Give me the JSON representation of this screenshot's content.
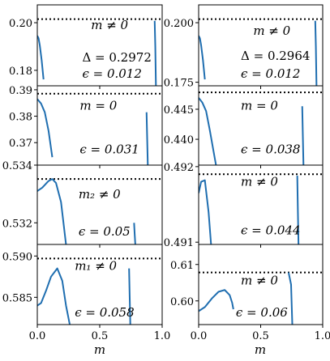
{
  "chart_data": [
    {
      "type": "line",
      "xlim": [
        0,
        1
      ],
      "ylim": [
        0.1735,
        0.2075
      ],
      "yticks": [
        {
          "v": 0.2,
          "label": "0.20"
        },
        {
          "v": 0.18,
          "label": "0.18"
        }
      ],
      "hline": 0.2015,
      "annotations": [
        "m ≠ 0",
        "Δ = 0.2972",
        "ϵ = 0.012"
      ],
      "series": [
        {
          "points": [
            [
              0,
              0.1945
            ],
            [
              0.01,
              0.1935
            ],
            [
              0.02,
              0.1905
            ],
            [
              0.035,
              0.1842
            ],
            [
              0.05,
              0.1762
            ]
          ]
        },
        {
          "points": [
            [
              0.94,
              0.2008
            ],
            [
              0.945,
              0.19
            ],
            [
              0.95,
              0.1735
            ]
          ]
        }
      ]
    },
    {
      "type": "line",
      "xlim": [
        0,
        1
      ],
      "ylim": [
        0.1735,
        0.2075
      ],
      "yticks": [
        {
          "v": 0.2,
          "label": "0.200"
        },
        {
          "v": 0.175,
          "label": "0.175"
        }
      ],
      "hline": 0.2015,
      "annotations": [
        "m ≠ 0",
        "Δ = 0.2964",
        "ϵ = 0.012"
      ],
      "series": [
        {
          "points": [
            [
              0,
              0.1945
            ],
            [
              0.01,
              0.1935
            ],
            [
              0.02,
              0.1905
            ],
            [
              0.035,
              0.1842
            ],
            [
              0.05,
              0.1762
            ]
          ]
        },
        {
          "points": [
            [
              0.94,
              0.2008
            ],
            [
              0.945,
              0.19
            ],
            [
              0.95,
              0.1735
            ]
          ]
        }
      ]
    },
    {
      "type": "line",
      "xlim": [
        0,
        1
      ],
      "ylim": [
        0.3615,
        0.3915
      ],
      "yticks": [
        {
          "v": 0.39,
          "label": "0.39"
        },
        {
          "v": 0.38,
          "label": "0.38"
        },
        {
          "v": 0.37,
          "label": "0.37"
        }
      ],
      "hline": 0.3885,
      "annotations": [
        "m = 0",
        "ϵ = 0.031"
      ],
      "series": [
        {
          "points": [
            [
              0,
              0.3865
            ],
            [
              0.03,
              0.3848
            ],
            [
              0.06,
              0.3815
            ],
            [
              0.09,
              0.3745
            ],
            [
              0.12,
              0.3645
            ]
          ]
        },
        {
          "points": [
            [
              0.875,
              0.3815
            ],
            [
              0.88,
              0.3715
            ],
            [
              0.885,
              0.3615
            ]
          ]
        }
      ]
    },
    {
      "type": "line",
      "xlim": [
        0,
        1
      ],
      "ylim": [
        0.4357,
        0.4489
      ],
      "yticks": [
        {
          "v": 0.445,
          "label": "0.445"
        },
        {
          "v": 0.44,
          "label": "0.440"
        }
      ],
      "hline": 0.4478,
      "annotations": [
        "m = 0",
        "ϵ = 0.038"
      ],
      "series": [
        {
          "points": [
            [
              0,
              0.4469
            ],
            [
              0.03,
              0.4461
            ],
            [
              0.06,
              0.4447
            ],
            [
              0.09,
              0.4415
            ],
            [
              0.12,
              0.438
            ],
            [
              0.14,
              0.4357
            ]
          ]
        },
        {
          "points": [
            [
              0.835,
              0.4455
            ],
            [
              0.84,
              0.4405
            ],
            [
              0.845,
              0.4357
            ]
          ]
        }
      ]
    },
    {
      "type": "line",
      "xlim": [
        0,
        1
      ],
      "ylim": [
        0.53125,
        0.534
      ],
      "yticks": [
        {
          "v": 0.534,
          "label": "0.534"
        },
        {
          "v": 0.532,
          "label": "0.532"
        }
      ],
      "hline": 0.53352,
      "annotations": [
        "m₂ ≠ 0",
        "ϵ = 0.05"
      ],
      "series": [
        {
          "points": [
            [
              0,
              0.5331
            ],
            [
              0.04,
              0.53322
            ],
            [
              0.09,
              0.53345
            ],
            [
              0.12,
              0.53352
            ],
            [
              0.15,
              0.53338
            ],
            [
              0.19,
              0.53272
            ],
            [
              0.23,
              0.53125
            ]
          ]
        },
        {
          "points": [
            [
              0.775,
              0.532
            ],
            [
              0.78,
              0.5316
            ],
            [
              0.785,
              0.53125
            ]
          ]
        }
      ]
    },
    {
      "type": "line",
      "xlim": [
        0,
        1
      ],
      "ylim": [
        0.49097,
        0.49202
      ],
      "yticks": [
        {
          "v": 0.492,
          "label": "0.492"
        },
        {
          "v": 0.491,
          "label": "0.491"
        }
      ],
      "hline": 0.4919,
      "annotations": [
        "m ≠ 0",
        "ϵ = 0.044"
      ],
      "series": [
        {
          "points": [
            [
              0,
              0.49165
            ],
            [
              0.02,
              0.4918
            ],
            [
              0.05,
              0.49182
            ],
            [
              0.08,
              0.4914
            ],
            [
              0.1,
              0.49097
            ]
          ]
        },
        {
          "points": [
            [
              0.795,
              0.49188
            ],
            [
              0.8,
              0.4914
            ],
            [
              0.805,
              0.49097
            ]
          ]
        }
      ]
    },
    {
      "type": "line",
      "xlim": [
        0,
        1
      ],
      "ylim": [
        0.5817,
        0.5914
      ],
      "yticks": [
        {
          "v": 0.59,
          "label": "0.590"
        },
        {
          "v": 0.585,
          "label": "0.585"
        }
      ],
      "hline": 0.5897,
      "annotations": [
        "m₁ ≠ 0",
        "ϵ = 0.058"
      ],
      "series": [
        {
          "points": [
            [
              0,
              0.584
            ],
            [
              0.03,
              0.5843
            ],
            [
              0.07,
              0.5858
            ],
            [
              0.11,
              0.5875
            ],
            [
              0.16,
              0.5885
            ],
            [
              0.2,
              0.587
            ],
            [
              0.23,
              0.584
            ],
            [
              0.26,
              0.5817
            ]
          ]
        },
        {
          "points": [
            [
              0.735,
              0.5885
            ],
            [
              0.74,
              0.585
            ],
            [
              0.745,
              0.5817
            ]
          ]
        }
      ]
    },
    {
      "type": "line",
      "xlim": [
        0,
        1
      ],
      "ylim": [
        0.5935,
        0.6155
      ],
      "yticks": [
        {
          "v": 0.61,
          "label": "0.61"
        },
        {
          "v": 0.6,
          "label": "0.60"
        }
      ],
      "hline": 0.6078,
      "annotations": [
        "m ≠ 0",
        "ϵ = 0.06"
      ],
      "series": [
        {
          "points": [
            [
              0,
              0.5972
            ],
            [
              0.05,
              0.5983
            ],
            [
              0.11,
              0.6008
            ],
            [
              0.16,
              0.6025
            ],
            [
              0.21,
              0.603
            ],
            [
              0.25,
              0.6016
            ],
            [
              0.27,
              0.5995
            ],
            [
              0.28,
              0.5977
            ]
          ]
        },
        {
          "points": [
            [
              0.725,
              0.6078
            ],
            [
              0.745,
              0.6045
            ],
            [
              0.755,
              0.5935
            ]
          ]
        }
      ]
    }
  ],
  "shared": {
    "xlim": [
      0,
      1
    ],
    "xticks": [
      {
        "v": 0.0,
        "label": "0.0"
      },
      {
        "v": 0.5,
        "label": "0.5"
      },
      {
        "v": 1.0,
        "label": "1.0"
      }
    ],
    "xlabel": "m",
    "line_color": "#1f6eb0",
    "ref_line_color": "#000000"
  }
}
